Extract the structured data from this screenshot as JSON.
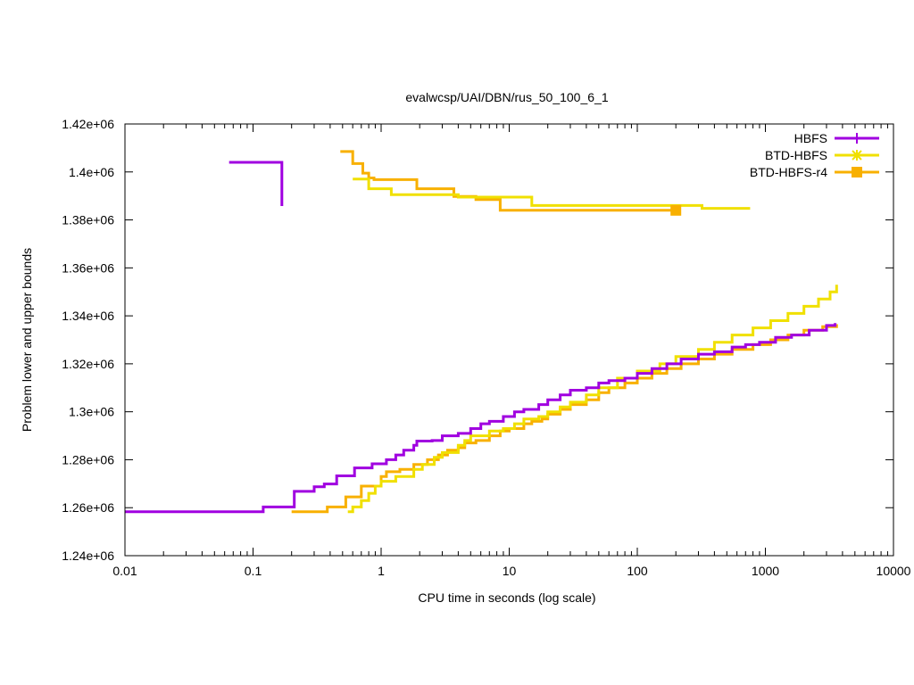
{
  "chart_data": {
    "type": "line",
    "title": "evalwcsp/UAI/DBN/rus_50_100_6_1",
    "xlabel": "CPU time in seconds (log scale)",
    "ylabel": "Problem lower and upper bounds",
    "x_scale": "log",
    "xlim": [
      0.01,
      10000
    ],
    "ylim": [
      1240000,
      1420000
    ],
    "x_ticks": [
      0.01,
      0.1,
      1,
      10,
      100,
      1000,
      10000
    ],
    "x_tick_labels": [
      "0.01",
      "0.1",
      "1",
      "10",
      "100",
      "1000",
      "10000"
    ],
    "y_ticks": [
      1240000,
      1260000,
      1280000,
      1300000,
      1320000,
      1340000,
      1360000,
      1380000,
      1400000,
      1420000
    ],
    "y_tick_labels": [
      "1.24e+06",
      "1.26e+06",
      "1.28e+06",
      "1.3e+06",
      "1.32e+06",
      "1.34e+06",
      "1.36e+06",
      "1.38e+06",
      "1.4e+06",
      "1.42e+06"
    ],
    "legend_position": "top-right",
    "grid": false,
    "series": [
      {
        "name": "HBFS",
        "color": "#a000e0",
        "marker": "plus",
        "upper": [
          [
            0.065,
            1404000
          ],
          [
            0.168,
            1404000
          ],
          [
            0.168,
            1385800
          ]
        ],
        "lower": [
          [
            0.01,
            1258300
          ],
          [
            0.12,
            1258300
          ],
          [
            0.12,
            1260300
          ],
          [
            0.21,
            1260300
          ],
          [
            0.21,
            1266800
          ],
          [
            0.3,
            1266800
          ],
          [
            0.3,
            1268700
          ],
          [
            0.36,
            1268700
          ],
          [
            0.36,
            1269900
          ],
          [
            0.45,
            1269900
          ],
          [
            0.45,
            1273300
          ],
          [
            0.62,
            1273300
          ],
          [
            0.62,
            1276600
          ],
          [
            0.85,
            1276600
          ],
          [
            0.85,
            1278300
          ],
          [
            1.1,
            1278300
          ],
          [
            1.1,
            1280000
          ],
          [
            1.3,
            1280000
          ],
          [
            1.3,
            1282000
          ],
          [
            1.5,
            1284000
          ],
          [
            1.8,
            1286000
          ],
          [
            1.9,
            1287800
          ],
          [
            2.5,
            1288000
          ],
          [
            3.0,
            1290000
          ],
          [
            4.0,
            1291000
          ],
          [
            5.0,
            1293000
          ],
          [
            6.0,
            1295000
          ],
          [
            7.0,
            1296000
          ],
          [
            9.0,
            1298000
          ],
          [
            11,
            1300000
          ],
          [
            13,
            1301000
          ],
          [
            17,
            1303000
          ],
          [
            20,
            1305000
          ],
          [
            25,
            1307000
          ],
          [
            30,
            1309000
          ],
          [
            40,
            1310000
          ],
          [
            50,
            1312000
          ],
          [
            60,
            1313000
          ],
          [
            80,
            1314000
          ],
          [
            100,
            1316000
          ],
          [
            130,
            1318000
          ],
          [
            170,
            1320000
          ],
          [
            220,
            1322000
          ],
          [
            300,
            1324000
          ],
          [
            400,
            1325000
          ],
          [
            550,
            1327000
          ],
          [
            700,
            1328000
          ],
          [
            900,
            1329000
          ],
          [
            1200,
            1331000
          ],
          [
            1600,
            1332000
          ],
          [
            2200,
            1334000
          ],
          [
            3000,
            1336000
          ],
          [
            3500,
            1337000
          ]
        ]
      },
      {
        "name": "BTD-HBFS",
        "color": "#f0e000",
        "marker": "star",
        "upper": [
          [
            0.6,
            1397000
          ],
          [
            0.8,
            1397000
          ],
          [
            0.8,
            1393000
          ],
          [
            1.2,
            1393000
          ],
          [
            1.2,
            1390500
          ],
          [
            4.0,
            1390500
          ],
          [
            4.0,
            1389500
          ],
          [
            15,
            1389500
          ],
          [
            15,
            1386000
          ],
          [
            320,
            1386000
          ],
          [
            320,
            1384800
          ],
          [
            760,
            1384800
          ]
        ],
        "lower": [
          [
            0.55,
            1258300
          ],
          [
            0.6,
            1258300
          ],
          [
            0.6,
            1260300
          ],
          [
            0.7,
            1260300
          ],
          [
            0.7,
            1263000
          ],
          [
            0.8,
            1263000
          ],
          [
            0.8,
            1266000
          ],
          [
            0.9,
            1266000
          ],
          [
            0.9,
            1269000
          ],
          [
            1.0,
            1269000
          ],
          [
            1.0,
            1271000
          ],
          [
            1.3,
            1271000
          ],
          [
            1.3,
            1273000
          ],
          [
            1.8,
            1273000
          ],
          [
            1.8,
            1276000
          ],
          [
            2.1,
            1276000
          ],
          [
            2.1,
            1278000
          ],
          [
            2.6,
            1278000
          ],
          [
            2.6,
            1281000
          ],
          [
            3.0,
            1283000
          ],
          [
            4.0,
            1286000
          ],
          [
            4.5,
            1288000
          ],
          [
            5.0,
            1290000
          ],
          [
            7.0,
            1292000
          ],
          [
            9.0,
            1293000
          ],
          [
            11,
            1295000
          ],
          [
            13,
            1297000
          ],
          [
            17,
            1298000
          ],
          [
            20,
            1300000
          ],
          [
            25,
            1302000
          ],
          [
            30,
            1304000
          ],
          [
            40,
            1307000
          ],
          [
            50,
            1310000
          ],
          [
            70,
            1314000
          ],
          [
            100,
            1317000
          ],
          [
            150,
            1320000
          ],
          [
            200,
            1323000
          ],
          [
            300,
            1326000
          ],
          [
            400,
            1329000
          ],
          [
            550,
            1332000
          ],
          [
            800,
            1335000
          ],
          [
            1100,
            1338000
          ],
          [
            1500,
            1341000
          ],
          [
            2000,
            1344000
          ],
          [
            2600,
            1347000
          ],
          [
            3200,
            1350000
          ],
          [
            3600,
            1353000
          ]
        ]
      },
      {
        "name": "BTD-HBFS-r4",
        "color": "#f8b000",
        "marker": "square",
        "upper": [
          [
            0.48,
            1408500
          ],
          [
            0.6,
            1408500
          ],
          [
            0.6,
            1403500
          ],
          [
            0.72,
            1403500
          ],
          [
            0.72,
            1399500
          ],
          [
            0.8,
            1399500
          ],
          [
            0.8,
            1397500
          ],
          [
            0.88,
            1397500
          ],
          [
            0.88,
            1396800
          ],
          [
            1.9,
            1396800
          ],
          [
            1.9,
            1393000
          ],
          [
            3.7,
            1393000
          ],
          [
            3.7,
            1389800
          ],
          [
            5.5,
            1389800
          ],
          [
            5.5,
            1388500
          ],
          [
            8.5,
            1388500
          ],
          [
            8.5,
            1384000
          ],
          [
            200,
            1384000
          ]
        ],
        "lower": [
          [
            0.2,
            1258300
          ],
          [
            0.38,
            1258300
          ],
          [
            0.38,
            1260300
          ],
          [
            0.53,
            1260300
          ],
          [
            0.53,
            1264500
          ],
          [
            0.7,
            1264500
          ],
          [
            0.7,
            1269000
          ],
          [
            1.0,
            1269000
          ],
          [
            1.0,
            1273000
          ],
          [
            1.1,
            1273000
          ],
          [
            1.1,
            1275000
          ],
          [
            1.4,
            1275000
          ],
          [
            1.4,
            1276000
          ],
          [
            1.8,
            1276000
          ],
          [
            1.8,
            1278000
          ],
          [
            2.3,
            1280000
          ],
          [
            2.8,
            1282000
          ],
          [
            3.3,
            1284000
          ],
          [
            4.0,
            1285000
          ],
          [
            4.5,
            1287000
          ],
          [
            5.5,
            1288000
          ],
          [
            7.0,
            1290000
          ],
          [
            8.5,
            1292000
          ],
          [
            10,
            1293000
          ],
          [
            13,
            1295000
          ],
          [
            15,
            1296000
          ],
          [
            18,
            1297000
          ],
          [
            20,
            1299000
          ],
          [
            25,
            1301000
          ],
          [
            30,
            1303000
          ],
          [
            40,
            1305000
          ],
          [
            50,
            1308000
          ],
          [
            60,
            1310000
          ],
          [
            80,
            1312000
          ],
          [
            100,
            1314000
          ],
          [
            130,
            1316000
          ],
          [
            170,
            1318000
          ],
          [
            220,
            1320000
          ],
          [
            300,
            1322000
          ],
          [
            400,
            1324000
          ],
          [
            550,
            1326000
          ],
          [
            800,
            1328000
          ],
          [
            1100,
            1330000
          ],
          [
            1500,
            1332000
          ],
          [
            2000,
            1334000
          ],
          [
            2800,
            1335500
          ],
          [
            3600,
            1336500
          ]
        ]
      }
    ]
  }
}
